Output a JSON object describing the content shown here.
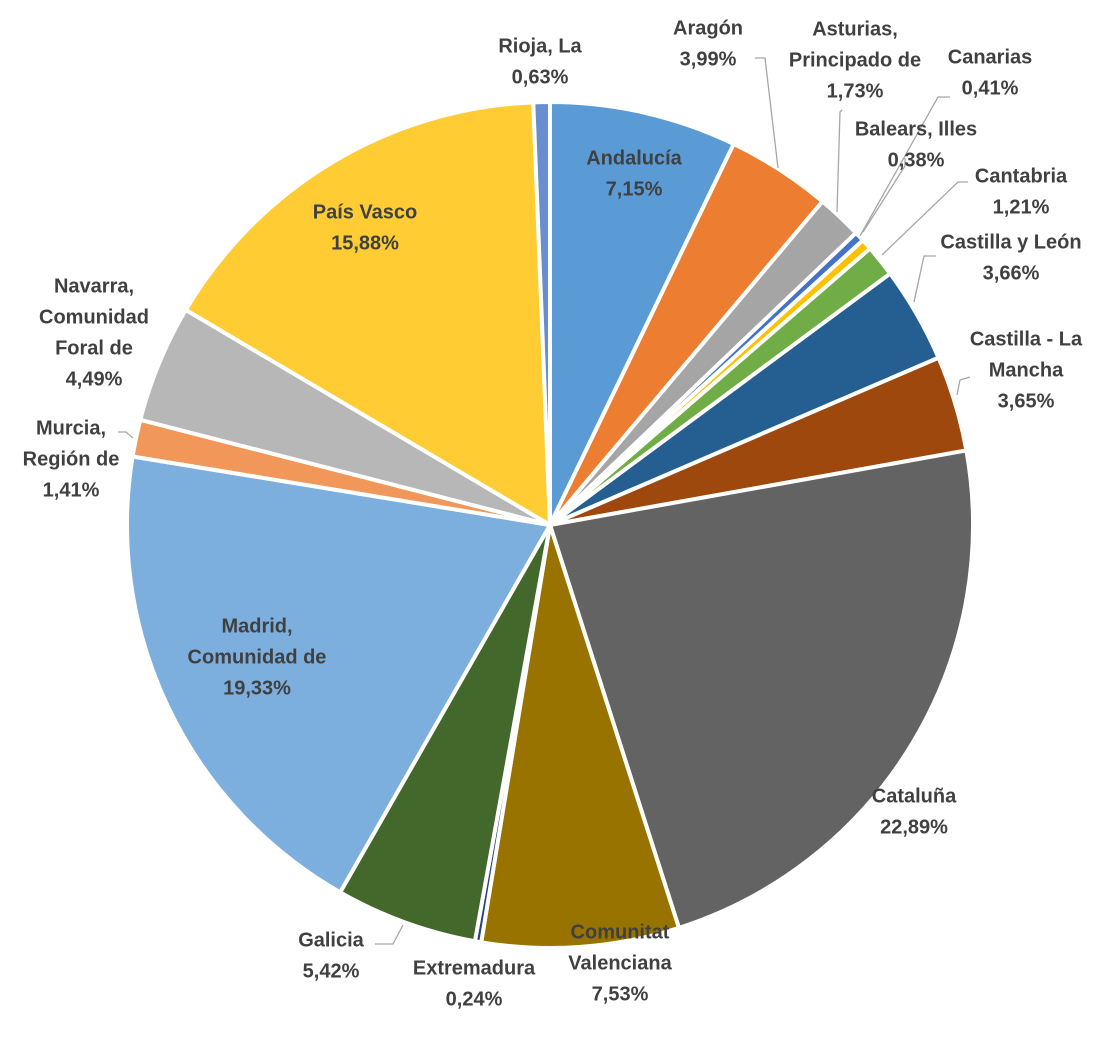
{
  "chart_data": {
    "type": "pie",
    "title": "",
    "start_angle_deg": 0,
    "direction": "clockwise",
    "series": [
      {
        "categories": [
          "Andalucía",
          "Aragón",
          "Asturias, Principado de",
          "Balears, Illes",
          "Canarias",
          "Cantabria",
          "Castilla y León",
          "Castilla - La Mancha",
          "Cataluña",
          "Comunitat Valenciana",
          "Extremadura",
          "Galicia",
          "Madrid, Comunidad de",
          "Murcia, Región de",
          "Navarra, Comunidad Foral de",
          "País Vasco",
          "Rioja, La"
        ],
        "values": [
          7.15,
          3.99,
          1.73,
          0.38,
          0.41,
          1.21,
          3.66,
          3.65,
          22.89,
          7.53,
          0.24,
          5.42,
          19.33,
          1.41,
          4.49,
          15.88,
          0.63
        ],
        "value_labels": [
          "7,15%",
          "3,99%",
          "1,73%",
          "0,38%",
          "0,41%",
          "1,21%",
          "3,66%",
          "3,65%",
          "22,89%",
          "7,53%",
          "0,24%",
          "5,42%",
          "19,33%",
          "1,41%",
          "4,49%",
          "15,88%",
          "0,63%"
        ],
        "colors": [
          "#5b9bd5",
          "#ed7d31",
          "#a5a5a5",
          "#4472c4",
          "#ffc000",
          "#70ad47",
          "#255e91",
          "#9e480e",
          "#636363",
          "#997300",
          "#264478",
          "#43682b",
          "#7cafdd",
          "#f1975a",
          "#b7b7b7",
          "#ffcd33",
          "#698ed0"
        ]
      }
    ],
    "data_labels": [
      {
        "lines": [
          "Andalucía",
          "7,15%"
        ]
      },
      {
        "lines": [
          "Aragón",
          "3,99%"
        ]
      },
      {
        "lines": [
          "Asturias,",
          "Principado de",
          "1,73%"
        ]
      },
      {
        "lines": [
          "Balears, Illes",
          "0,38%"
        ]
      },
      {
        "lines": [
          "Canarias",
          "0,41%"
        ]
      },
      {
        "lines": [
          "Cantabria",
          "1,21%"
        ]
      },
      {
        "lines": [
          "Castilla y León",
          "3,66%"
        ]
      },
      {
        "lines": [
          "Castilla - La",
          "Mancha",
          "3,65%"
        ]
      },
      {
        "lines": [
          "Cataluña",
          "22,89%"
        ]
      },
      {
        "lines": [
          "Comunitat",
          "Valenciana",
          "7,53%"
        ]
      },
      {
        "lines": [
          "Extremadura",
          "0,24%"
        ]
      },
      {
        "lines": [
          "Galicia",
          "5,42%"
        ]
      },
      {
        "lines": [
          "Madrid,",
          "Comunidad de",
          "19,33%"
        ]
      },
      {
        "lines": [
          "Murcia,",
          "Región de",
          "1,41%"
        ]
      },
      {
        "lines": [
          "Navarra,",
          "Comunidad",
          "Foral de",
          "4,49%"
        ]
      },
      {
        "lines": [
          "País Vasco",
          "15,88%"
        ]
      },
      {
        "lines": [
          "Rioja, La",
          "0,63%"
        ]
      }
    ],
    "legend": "none"
  }
}
